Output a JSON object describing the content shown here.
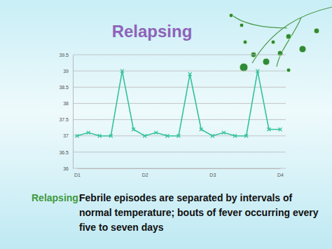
{
  "chart_data": {
    "type": "line",
    "title": "Relapsing",
    "categories": [
      "D1",
      null,
      null,
      null,
      null,
      null,
      "D2",
      null,
      null,
      null,
      null,
      null,
      "D3",
      null,
      null,
      null,
      null,
      null,
      "D4"
    ],
    "values": [
      37,
      37.1,
      37,
      37,
      39,
      37.2,
      37,
      37.1,
      37,
      37,
      38.9,
      37.2,
      37,
      37.1,
      37,
      37,
      39,
      37.2,
      37.2
    ],
    "color": "#33c29b",
    "marker": "x",
    "ylim": [
      36,
      39.5
    ],
    "yticks": [
      36,
      36.5,
      37,
      37.5,
      38,
      38.5,
      39,
      39.5
    ],
    "grid": true,
    "annotations": [
      {
        "label": "Relapsing:",
        "text": "Febrile episodes are separated by intervals of normal temperature; bouts of fever occurring every five to seven days"
      }
    ]
  }
}
